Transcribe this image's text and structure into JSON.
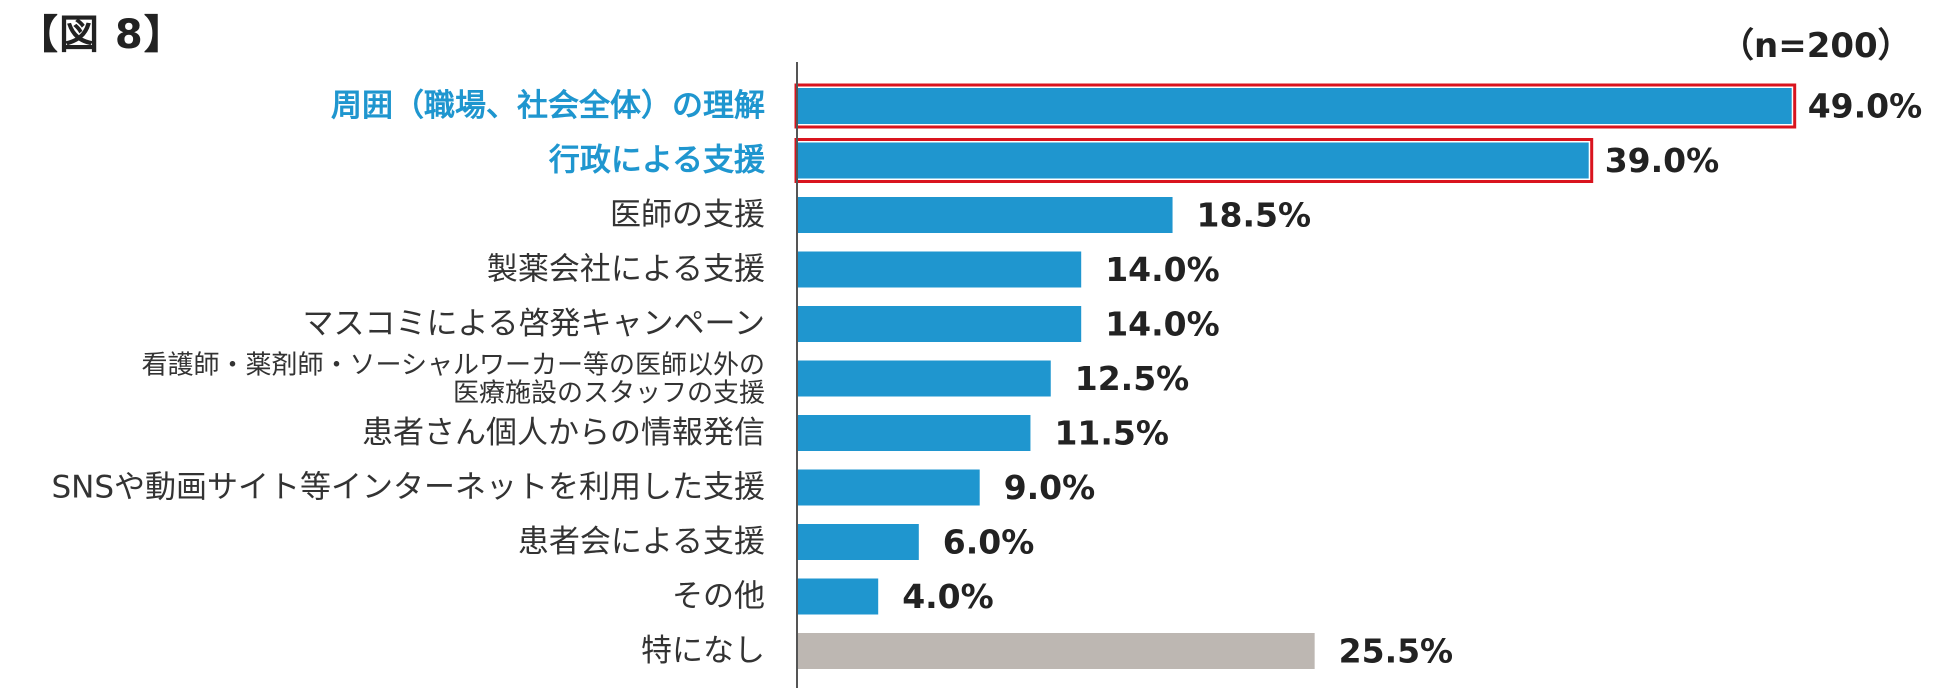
{
  "figure_label": "【図 8】",
  "sample_size": "（n=200）",
  "colors": {
    "bar": "#1f96cf",
    "bar_none": "#bdb7b2",
    "highlight_text": "#1f96cf",
    "highlight_box": "#d9141e",
    "axis": "#555555"
  },
  "chart_data": {
    "type": "bar",
    "orientation": "horizontal",
    "title": "",
    "xlabel": "",
    "ylabel": "",
    "xlim": [
      0,
      50
    ],
    "grid": false,
    "categories": [
      {
        "label": [
          "周囲（職場、社会全体）の理解"
        ],
        "highlight": true,
        "none": false
      },
      {
        "label": [
          "行政による支援"
        ],
        "highlight": true,
        "none": false
      },
      {
        "label": [
          "医師の支援"
        ],
        "highlight": false,
        "none": false
      },
      {
        "label": [
          "製薬会社による支援"
        ],
        "highlight": false,
        "none": false
      },
      {
        "label": [
          "マスコミによる啓発キャンペーン"
        ],
        "highlight": false,
        "none": false
      },
      {
        "label": [
          "看護師・薬剤師・ソーシャルワーカー等の医師以外の",
          "医療施設のスタッフの支援"
        ],
        "highlight": false,
        "none": false
      },
      {
        "label": [
          "患者さん個人からの情報発信"
        ],
        "highlight": false,
        "none": false
      },
      {
        "label": [
          "SNSや動画サイト等インターネットを利用した支援"
        ],
        "highlight": false,
        "none": false
      },
      {
        "label": [
          "患者会による支援"
        ],
        "highlight": false,
        "none": false
      },
      {
        "label": [
          "その他"
        ],
        "highlight": false,
        "none": false
      },
      {
        "label": [
          "特になし"
        ],
        "highlight": false,
        "none": true
      }
    ],
    "values": [
      49.0,
      39.0,
      18.5,
      14.0,
      14.0,
      12.5,
      11.5,
      9.0,
      6.0,
      4.0,
      25.5
    ],
    "value_labels": [
      "49.0%",
      "39.0%",
      "18.5%",
      "14.0%",
      "14.0%",
      "12.5%",
      "11.5%",
      "9.0%",
      "6.0%",
      "4.0%",
      "25.5%"
    ]
  }
}
